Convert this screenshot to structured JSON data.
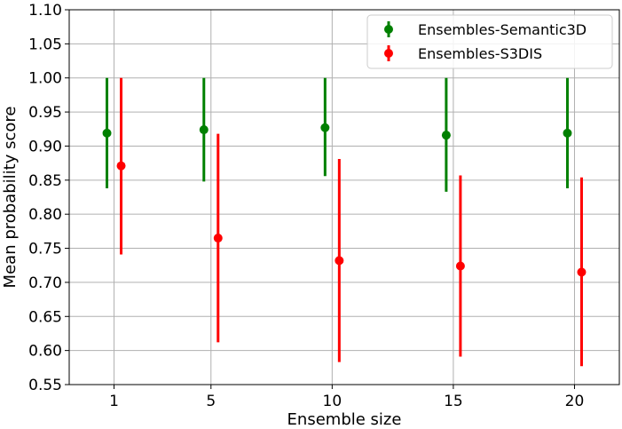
{
  "chart_data": {
    "type": "errorbar",
    "categories": [
      "1",
      "5",
      "10",
      "15",
      "20"
    ],
    "xlabel": "Ensemble size",
    "ylabel": "Mean probability score",
    "ylim": [
      0.55,
      1.1
    ],
    "yticks": [
      "0.55",
      "0.60",
      "0.65",
      "0.70",
      "0.75",
      "0.80",
      "0.85",
      "0.90",
      "0.95",
      "1.00",
      "1.05",
      "1.10"
    ],
    "grid": true,
    "legend_position": "top-right",
    "series": [
      {
        "name": "Ensembles-Semantic3D",
        "color": "#008000",
        "values": [
          0.919,
          0.924,
          0.927,
          0.916,
          0.919
        ],
        "lower": [
          0.838,
          0.848,
          0.856,
          0.833,
          0.838
        ],
        "upper": [
          1.0,
          1.0,
          1.0,
          1.0,
          1.0
        ]
      },
      {
        "name": "Ensembles-S3DIS",
        "color": "#ff0000",
        "values": [
          0.871,
          0.765,
          0.732,
          0.724,
          0.715
        ],
        "lower": [
          0.741,
          0.612,
          0.583,
          0.591,
          0.577
        ],
        "upper": [
          1.0,
          0.918,
          0.881,
          0.857,
          0.854
        ]
      }
    ]
  }
}
